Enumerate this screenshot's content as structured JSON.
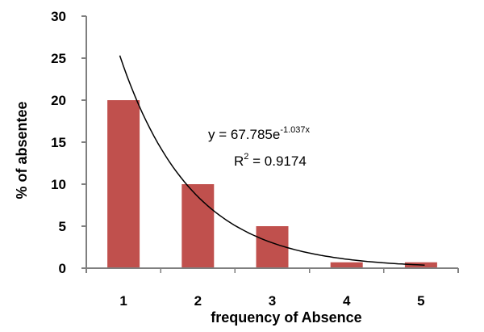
{
  "chart_data": {
    "type": "bar",
    "categories": [
      "1",
      "2",
      "3",
      "4",
      "5"
    ],
    "values": [
      20,
      10,
      5,
      0.7,
      0.7
    ],
    "xlabel": "frequency of Absence",
    "ylabel": "% of absentee",
    "ylim": [
      0,
      30
    ],
    "yticks": [
      0,
      5,
      10,
      15,
      20,
      25,
      30
    ],
    "grid": false,
    "legend": "none",
    "bar_color": "#c0504d",
    "trendline": {
      "type": "exponential",
      "a": 67.785,
      "b": -1.037,
      "x_range": [
        0.95,
        5.05
      ],
      "color": "#000000",
      "equation_main": "y = 67.785e",
      "equation_exponent": "-1.037x",
      "r2_prefix": "R",
      "r2_exponent": "2",
      "r2_value": " = 0.9174"
    }
  }
}
